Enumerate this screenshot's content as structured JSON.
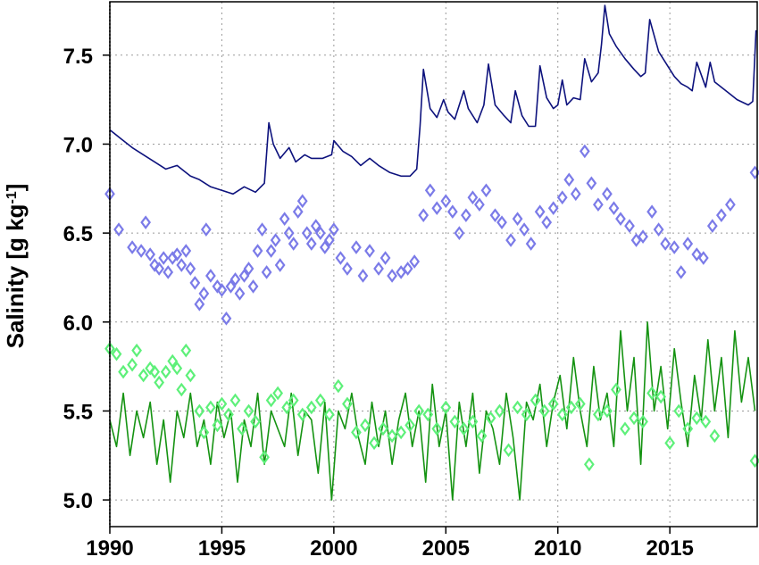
{
  "chart_data": {
    "type": "line",
    "title": "",
    "xlabel": "",
    "ylabel": "Salinity [g kg",
    "ylabel_sup": "-1",
    "ylabel_close": "]",
    "xlim": [
      1990,
      2018.9
    ],
    "ylim": [
      4.85,
      7.8
    ],
    "xticks": [
      1990,
      1995,
      2000,
      2005,
      2010,
      2015
    ],
    "xtick_labels": [
      "1990",
      "1995",
      "2000",
      "2005",
      "2010",
      "2015"
    ],
    "yticks": [
      5.0,
      5.5,
      6.0,
      6.5,
      7.0,
      7.5
    ],
    "ytick_labels": [
      "5.0",
      "5.5",
      "6.0",
      "6.5",
      "7.0",
      "7.5"
    ],
    "grid": true,
    "legend": "none",
    "series": [
      {
        "kind": "line",
        "color": "#0d127d",
        "x": [
          1990.0,
          1990.5,
          1991.0,
          1991.5,
          1992.0,
          1992.5,
          1993.0,
          1993.3,
          1993.6,
          1994.0,
          1994.5,
          1995.0,
          1995.5,
          1996.0,
          1996.5,
          1996.9,
          1997.1,
          1997.3,
          1997.6,
          1998.0,
          1998.3,
          1998.7,
          1999.0,
          1999.5,
          1999.9,
          2000.0,
          2000.4,
          2000.8,
          2001.2,
          2001.6,
          2002.0,
          2002.5,
          2003.0,
          2003.4,
          2003.7,
          2003.85,
          2004.0,
          2004.3,
          2004.6,
          2004.9,
          2005.1,
          2005.4,
          2005.8,
          2006.0,
          2006.4,
          2006.7,
          2006.9,
          2007.2,
          2007.6,
          2007.9,
          2008.1,
          2008.4,
          2008.7,
          2009.0,
          2009.2,
          2009.5,
          2009.8,
          2010.0,
          2010.2,
          2010.4,
          2010.7,
          2011.0,
          2011.2,
          2011.5,
          2011.8,
          2011.95,
          2012.1,
          2012.3,
          2012.6,
          2013.0,
          2013.4,
          2013.7,
          2013.9,
          2014.1,
          2014.5,
          2014.9,
          2015.2,
          2015.5,
          2015.8,
          2016.0,
          2016.2,
          2016.6,
          2016.8,
          2017.0,
          2017.3,
          2017.7,
          2018.0,
          2018.5,
          2018.7,
          2018.85
        ],
        "values": [
          7.08,
          7.03,
          6.98,
          6.94,
          6.9,
          6.86,
          6.88,
          6.85,
          6.82,
          6.8,
          6.76,
          6.74,
          6.72,
          6.76,
          6.73,
          6.78,
          7.12,
          7.0,
          6.92,
          6.98,
          6.9,
          6.94,
          6.92,
          6.92,
          6.94,
          7.02,
          6.96,
          6.93,
          6.88,
          6.92,
          6.88,
          6.84,
          6.82,
          6.82,
          6.86,
          7.1,
          7.42,
          7.2,
          7.15,
          7.25,
          7.18,
          7.14,
          7.3,
          7.2,
          7.12,
          7.22,
          7.45,
          7.22,
          7.16,
          7.12,
          7.3,
          7.16,
          7.1,
          7.1,
          7.44,
          7.26,
          7.2,
          7.22,
          7.36,
          7.22,
          7.26,
          7.25,
          7.48,
          7.35,
          7.4,
          7.56,
          7.78,
          7.62,
          7.55,
          7.48,
          7.42,
          7.38,
          7.4,
          7.7,
          7.52,
          7.44,
          7.38,
          7.34,
          7.32,
          7.3,
          7.46,
          7.32,
          7.46,
          7.35,
          7.32,
          7.28,
          7.25,
          7.22,
          7.24,
          7.64
        ]
      },
      {
        "kind": "markers",
        "marker": "diamond",
        "color": "#7b7be8",
        "x": [
          1990.0,
          1990.4,
          1991.0,
          1991.4,
          1991.6,
          1991.8,
          1992.0,
          1992.2,
          1992.4,
          1992.6,
          1992.8,
          1993.0,
          1993.2,
          1993.4,
          1993.6,
          1993.8,
          1994.0,
          1994.2,
          1994.3,
          1994.5,
          1994.8,
          1995.0,
          1995.2,
          1995.4,
          1995.6,
          1995.8,
          1996.0,
          1996.2,
          1996.4,
          1996.6,
          1996.8,
          1997.0,
          1997.2,
          1997.4,
          1997.6,
          1997.8,
          1998.0,
          1998.2,
          1998.4,
          1998.6,
          1998.8,
          1999.0,
          1999.2,
          1999.4,
          1999.6,
          1999.8,
          2000.0,
          2000.3,
          2000.6,
          2001.0,
          2001.3,
          2001.6,
          2002.0,
          2002.3,
          2002.6,
          2003.0,
          2003.3,
          2003.6,
          2004.0,
          2004.3,
          2004.6,
          2005.0,
          2005.3,
          2005.6,
          2005.9,
          2006.2,
          2006.5,
          2006.8,
          2007.2,
          2007.5,
          2007.9,
          2008.2,
          2008.5,
          2008.8,
          2009.2,
          2009.5,
          2009.8,
          2010.2,
          2010.5,
          2010.8,
          2011.2,
          2011.5,
          2011.8,
          2012.2,
          2012.5,
          2012.8,
          2013.2,
          2013.5,
          2013.8,
          2014.2,
          2014.5,
          2014.8,
          2015.2,
          2015.5,
          2015.8,
          2016.2,
          2016.5,
          2016.9,
          2017.3,
          2017.7,
          2018.8
        ],
        "values": [
          6.72,
          6.52,
          6.42,
          6.4,
          6.56,
          6.38,
          6.32,
          6.3,
          6.36,
          6.28,
          6.36,
          6.38,
          6.32,
          6.4,
          6.3,
          6.22,
          6.1,
          6.16,
          6.52,
          6.26,
          6.2,
          6.18,
          6.02,
          6.2,
          6.24,
          6.16,
          6.26,
          6.3,
          6.2,
          6.4,
          6.52,
          6.28,
          6.4,
          6.46,
          6.32,
          6.58,
          6.5,
          6.44,
          6.62,
          6.68,
          6.5,
          6.44,
          6.54,
          6.5,
          6.42,
          6.46,
          6.52,
          6.36,
          6.3,
          6.42,
          6.26,
          6.4,
          6.3,
          6.36,
          6.26,
          6.28,
          6.3,
          6.34,
          6.6,
          6.74,
          6.64,
          6.68,
          6.62,
          6.5,
          6.6,
          6.7,
          6.66,
          6.74,
          6.6,
          6.56,
          6.46,
          6.58,
          6.52,
          6.44,
          6.62,
          6.56,
          6.64,
          6.7,
          6.8,
          6.72,
          6.96,
          6.78,
          6.66,
          6.72,
          6.64,
          6.58,
          6.54,
          6.46,
          6.48,
          6.62,
          6.52,
          6.44,
          6.42,
          6.28,
          6.44,
          6.38,
          6.36,
          6.54,
          6.6,
          6.66,
          6.84
        ]
      },
      {
        "kind": "line",
        "color": "#159312",
        "x": [
          1990.0,
          1990.3,
          1990.6,
          1990.9,
          1991.2,
          1991.5,
          1991.8,
          1992.1,
          1992.4,
          1992.7,
          1993.0,
          1993.3,
          1993.6,
          1993.9,
          1994.2,
          1994.5,
          1994.8,
          1995.1,
          1995.4,
          1995.7,
          1996.0,
          1996.3,
          1996.6,
          1996.9,
          1997.2,
          1997.5,
          1997.8,
          1998.1,
          1998.4,
          1998.7,
          1999.0,
          1999.3,
          1999.6,
          1999.9,
          2000.2,
          2000.5,
          2000.8,
          2001.1,
          2001.4,
          2001.7,
          2002.0,
          2002.3,
          2002.6,
          2002.9,
          2003.2,
          2003.5,
          2003.8,
          2004.1,
          2004.4,
          2004.7,
          2005.0,
          2005.3,
          2005.6,
          2005.9,
          2006.2,
          2006.5,
          2006.8,
          2007.1,
          2007.4,
          2007.7,
          2008.0,
          2008.3,
          2008.6,
          2008.9,
          2009.2,
          2009.5,
          2009.8,
          2010.1,
          2010.4,
          2010.7,
          2011.0,
          2011.3,
          2011.6,
          2011.9,
          2012.2,
          2012.5,
          2012.8,
          2013.1,
          2013.4,
          2013.7,
          2014.0,
          2014.3,
          2014.6,
          2014.9,
          2015.2,
          2015.5,
          2015.8,
          2016.1,
          2016.4,
          2016.7,
          2017.0,
          2017.3,
          2017.6,
          2017.9,
          2018.2,
          2018.5,
          2018.8
        ],
        "values": [
          5.45,
          5.3,
          5.6,
          5.25,
          5.5,
          5.35,
          5.55,
          5.2,
          5.45,
          5.1,
          5.5,
          5.35,
          5.6,
          5.3,
          5.45,
          5.2,
          5.55,
          5.35,
          5.5,
          5.1,
          5.45,
          5.3,
          5.6,
          5.2,
          5.5,
          5.4,
          5.3,
          5.6,
          5.25,
          5.5,
          5.45,
          5.15,
          5.55,
          5.0,
          5.5,
          5.4,
          5.6,
          5.35,
          5.2,
          5.55,
          5.3,
          5.5,
          5.2,
          5.45,
          5.6,
          5.3,
          5.5,
          5.1,
          5.65,
          5.3,
          5.5,
          5.0,
          5.55,
          5.3,
          5.6,
          5.15,
          5.5,
          5.4,
          5.2,
          5.6,
          5.35,
          5.0,
          5.55,
          5.45,
          5.65,
          5.3,
          5.55,
          5.7,
          5.4,
          5.8,
          5.5,
          5.3,
          5.75,
          5.45,
          5.6,
          5.3,
          5.95,
          5.5,
          5.8,
          5.2,
          6.0,
          5.5,
          5.75,
          5.4,
          5.85,
          5.55,
          5.3,
          5.7,
          5.45,
          5.9,
          5.5,
          5.8,
          5.35,
          5.95,
          5.55,
          5.8,
          5.5
        ]
      },
      {
        "kind": "markers",
        "marker": "diamond",
        "color": "#5ef07a",
        "x": [
          1990.0,
          1990.3,
          1990.6,
          1991.0,
          1991.2,
          1991.5,
          1991.8,
          1992.0,
          1992.2,
          1992.5,
          1992.8,
          1993.0,
          1993.2,
          1993.4,
          1993.6,
          1994.0,
          1994.2,
          1994.5,
          1994.8,
          1995.0,
          1995.3,
          1995.6,
          1995.9,
          1996.2,
          1996.5,
          1996.9,
          1997.2,
          1997.5,
          1997.9,
          1998.2,
          1998.6,
          1999.0,
          1999.4,
          1999.8,
          2000.2,
          2000.6,
          2001.0,
          2001.4,
          2001.8,
          2002.2,
          2002.6,
          2003.0,
          2003.4,
          2003.8,
          2004.2,
          2004.6,
          2005.0,
          2005.4,
          2005.8,
          2006.2,
          2006.6,
          2007.0,
          2007.4,
          2007.8,
          2008.2,
          2008.6,
          2009.0,
          2009.4,
          2009.8,
          2010.2,
          2010.6,
          2011.0,
          2011.4,
          2011.8,
          2012.2,
          2012.6,
          2013.0,
          2013.4,
          2013.8,
          2014.2,
          2014.6,
          2015.0,
          2015.4,
          2015.8,
          2016.2,
          2016.6,
          2017.0,
          2018.8
        ],
        "values": [
          5.85,
          5.82,
          5.72,
          5.76,
          5.84,
          5.7,
          5.74,
          5.72,
          5.66,
          5.72,
          5.78,
          5.74,
          5.62,
          5.84,
          5.7,
          5.5,
          5.38,
          5.52,
          5.42,
          5.54,
          5.48,
          5.56,
          5.4,
          5.5,
          5.44,
          5.24,
          5.56,
          5.6,
          5.52,
          5.56,
          5.48,
          5.52,
          5.56,
          5.48,
          5.64,
          5.54,
          5.38,
          5.42,
          5.32,
          5.4,
          5.36,
          5.38,
          5.42,
          5.5,
          5.48,
          5.4,
          5.52,
          5.44,
          5.4,
          5.44,
          5.36,
          5.46,
          5.5,
          5.28,
          5.52,
          5.48,
          5.56,
          5.5,
          5.54,
          5.48,
          5.52,
          5.54,
          5.2,
          5.48,
          5.5,
          5.62,
          5.4,
          5.46,
          5.44,
          5.6,
          5.58,
          5.32,
          5.5,
          5.4,
          5.46,
          5.44,
          5.36,
          5.22
        ]
      }
    ]
  }
}
